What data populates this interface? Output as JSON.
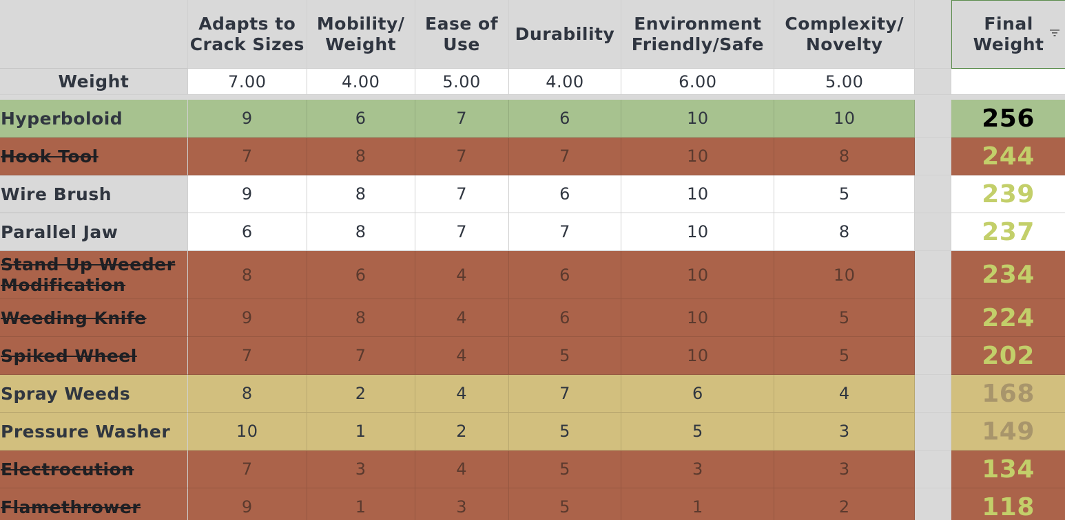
{
  "headers": {
    "blank": "",
    "adapts": "Adapts to Crack Sizes",
    "mobility": "Mobility/ Weight",
    "ease": "Ease of Use",
    "durability": "Durability",
    "environment": "Environment Friendly/Safe",
    "complexity": "Complexity/ Novelty",
    "final": "Final Weight"
  },
  "weights": {
    "label": "Weight",
    "adapts": "7.00",
    "mobility": "4.00",
    "ease": "5.00",
    "durability": "4.00",
    "environment": "6.00",
    "complexity": "5.00",
    "final": ""
  },
  "rows": [
    {
      "name": "Hyperboloid",
      "struck": false,
      "values": [
        "9",
        "6",
        "7",
        "6",
        "10",
        "10"
      ],
      "final": "256",
      "bg": "#a7c28f",
      "name_bg": "#a7c28f",
      "final_bg": "#a7c28f",
      "final_color": "#000000"
    },
    {
      "name": "Hook Tool",
      "struck": true,
      "values": [
        "7",
        "8",
        "7",
        "7",
        "10",
        "8"
      ],
      "final": "244",
      "bg": "#ab634a",
      "name_bg": "#ab634a",
      "final_bg": "#ab634a",
      "final_color": "#c3cf6a"
    },
    {
      "name": "Wire Brush",
      "struck": false,
      "values": [
        "9",
        "8",
        "7",
        "6",
        "10",
        "5"
      ],
      "final": "239",
      "bg": "#ffffff",
      "name_bg": "#d9d9d9",
      "final_bg": "#ffffff",
      "final_color": "#c3cf6a"
    },
    {
      "name": "Parallel Jaw",
      "struck": false,
      "values": [
        "6",
        "8",
        "7",
        "7",
        "10",
        "8"
      ],
      "final": "237",
      "bg": "#ffffff",
      "name_bg": "#d9d9d9",
      "final_bg": "#ffffff",
      "final_color": "#c3cf6a"
    },
    {
      "name": "Stand Up Weeder Modification",
      "struck": true,
      "values": [
        "8",
        "6",
        "4",
        "6",
        "10",
        "10"
      ],
      "final": "234",
      "bg": "#ab634a",
      "name_bg": "#ab634a",
      "final_bg": "#ab634a",
      "final_color": "#c3cf6a"
    },
    {
      "name": "Weeding Knife",
      "struck": true,
      "values": [
        "9",
        "8",
        "4",
        "6",
        "10",
        "5"
      ],
      "final": "224",
      "bg": "#ab634a",
      "name_bg": "#ab634a",
      "final_bg": "#ab634a",
      "final_color": "#c3cf6a"
    },
    {
      "name": "Spiked Wheel",
      "struck": true,
      "values": [
        "7",
        "7",
        "4",
        "5",
        "10",
        "5"
      ],
      "final": "202",
      "bg": "#ab634a",
      "name_bg": "#ab634a",
      "final_bg": "#ab634a",
      "final_color": "#c3cf6a"
    },
    {
      "name": "Spray Weeds",
      "struck": false,
      "values": [
        "8",
        "2",
        "4",
        "7",
        "6",
        "4"
      ],
      "final": "168",
      "bg": "#d2bf7e",
      "name_bg": "#d2bf7e",
      "final_bg": "#d2bf7e",
      "final_color": "#a8956b"
    },
    {
      "name": "Pressure Washer",
      "struck": false,
      "values": [
        "10",
        "1",
        "2",
        "5",
        "5",
        "3"
      ],
      "final": "149",
      "bg": "#d2bf7e",
      "name_bg": "#d2bf7e",
      "final_bg": "#d2bf7e",
      "final_color": "#a8956b"
    },
    {
      "name": "Electrocution",
      "struck": true,
      "values": [
        "7",
        "3",
        "4",
        "5",
        "3",
        "3"
      ],
      "final": "134",
      "bg": "#ab634a",
      "name_bg": "#ab634a",
      "final_bg": "#ab634a",
      "final_color": "#c3cf6a"
    },
    {
      "name": "Flamethrower",
      "struck": true,
      "values": [
        "9",
        "1",
        "3",
        "5",
        "1",
        "2"
      ],
      "final": "118",
      "bg": "#ab634a",
      "name_bg": "#ab634a",
      "final_bg": "#ab634a",
      "final_color": "#c3cf6a"
    }
  ],
  "icons": {
    "filter": "filter-icon"
  }
}
